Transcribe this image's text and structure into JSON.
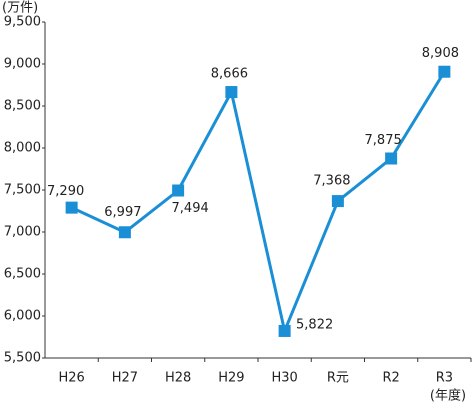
{
  "chart_data": {
    "type": "line",
    "y_label": "(万件)",
    "x_label": "(年度)",
    "categories": [
      "H26",
      "H27",
      "H28",
      "H29",
      "H30",
      "R元",
      "R2",
      "R3"
    ],
    "series": [
      {
        "color": "#1a8fd6",
        "values": [
          7290,
          6997,
          7494,
          8666,
          5822,
          7368,
          7875,
          8908
        ],
        "value_labels": [
          "7,290",
          "6,997",
          "7,494",
          "8,666",
          "5,822",
          "7,368",
          "7,875",
          "8,908"
        ]
      }
    ],
    "ylim": [
      5500,
      9500
    ],
    "yticks": [
      {
        "value": 5500,
        "label": "5,500"
      },
      {
        "value": 6000,
        "label": "6,000"
      },
      {
        "value": 6500,
        "label": "6,500"
      },
      {
        "value": 7000,
        "label": "7,000"
      },
      {
        "value": 7500,
        "label": "7,500"
      },
      {
        "value": 8000,
        "label": "8,000"
      },
      {
        "value": 8500,
        "label": "8,500"
      },
      {
        "value": 9000,
        "label": "9,000"
      },
      {
        "value": 9500,
        "label": "9,500"
      }
    ],
    "grid": false
  }
}
